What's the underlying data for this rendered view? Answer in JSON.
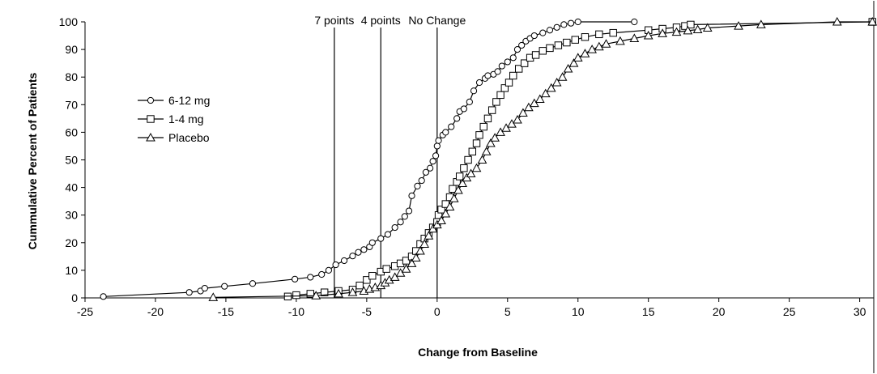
{
  "chart_data": {
    "type": "line",
    "title": "",
    "xlabel": "Change from Baseline",
    "ylabel": "Cummulative Percent of Patients",
    "xlim": [
      -25,
      31
    ],
    "ylim": [
      0,
      100
    ],
    "x_ticks": [
      -25,
      -20,
      -15,
      -10,
      -5,
      0,
      5,
      10,
      15,
      20,
      25,
      30
    ],
    "y_ticks": [
      0,
      10,
      20,
      30,
      40,
      50,
      60,
      70,
      80,
      90,
      100
    ],
    "grid": false,
    "legend_position": "left",
    "reference_lines": [
      {
        "x": -7.3,
        "label": "7 points"
      },
      {
        "x": -4.0,
        "label": "4 points"
      },
      {
        "x": 0,
        "label": "No Change"
      }
    ],
    "series": [
      {
        "name": "6-12 mg",
        "marker": "circle",
        "color": "#000000",
        "points": [
          [
            -23.7,
            0.5
          ],
          [
            -17.6,
            2.0
          ],
          [
            -16.8,
            2.5
          ],
          [
            -16.5,
            3.5
          ],
          [
            -15.1,
            4.2
          ],
          [
            -13.1,
            5.2
          ],
          [
            -10.1,
            6.8
          ],
          [
            -9.0,
            7.5
          ],
          [
            -8.2,
            8.5
          ],
          [
            -7.7,
            10
          ],
          [
            -7.2,
            12
          ],
          [
            -6.6,
            13.5
          ],
          [
            -6.0,
            15.2
          ],
          [
            -5.6,
            16.5
          ],
          [
            -5.2,
            17.5
          ],
          [
            -4.8,
            18.5
          ],
          [
            -4.6,
            20
          ],
          [
            -4.0,
            21.5
          ],
          [
            -3.5,
            23
          ],
          [
            -3.0,
            25.5
          ],
          [
            -2.6,
            27.5
          ],
          [
            -2.3,
            29.5
          ],
          [
            -2.0,
            31.5
          ],
          [
            -1.8,
            37
          ],
          [
            -1.4,
            40.5
          ],
          [
            -1.1,
            42.5
          ],
          [
            -0.8,
            45.5
          ],
          [
            -0.5,
            47
          ],
          [
            -0.3,
            49.5
          ],
          [
            -0.1,
            51.5
          ],
          [
            0.0,
            55
          ],
          [
            0.1,
            57
          ],
          [
            0.4,
            59
          ],
          [
            0.6,
            60
          ],
          [
            1.0,
            62
          ],
          [
            1.4,
            65
          ],
          [
            1.6,
            67.5
          ],
          [
            1.9,
            68.5
          ],
          [
            2.3,
            71
          ],
          [
            2.6,
            75
          ],
          [
            3.0,
            78
          ],
          [
            3.4,
            79.5
          ],
          [
            3.6,
            80.5
          ],
          [
            4.0,
            81
          ],
          [
            4.3,
            82
          ],
          [
            4.6,
            84
          ],
          [
            5.0,
            85.5
          ],
          [
            5.4,
            87
          ],
          [
            5.7,
            90
          ],
          [
            6.0,
            91.5
          ],
          [
            6.3,
            93
          ],
          [
            6.6,
            94
          ],
          [
            6.9,
            95
          ],
          [
            7.5,
            96
          ],
          [
            8.0,
            97
          ],
          [
            8.5,
            98
          ],
          [
            9.0,
            99
          ],
          [
            9.5,
            99.5
          ],
          [
            10.0,
            100
          ],
          [
            14.0,
            100
          ]
        ]
      },
      {
        "name": "1-4 mg",
        "marker": "square",
        "color": "#000000",
        "points": [
          [
            -10.6,
            0.5
          ],
          [
            -10.0,
            1.0
          ],
          [
            -9.0,
            1.5
          ],
          [
            -8.0,
            2.0
          ],
          [
            -7.0,
            2.5
          ],
          [
            -6.0,
            3.0
          ],
          [
            -5.5,
            4.5
          ],
          [
            -5.0,
            6.5
          ],
          [
            -4.6,
            8.0
          ],
          [
            -4.0,
            9.5
          ],
          [
            -3.6,
            10.5
          ],
          [
            -3.0,
            11.5
          ],
          [
            -2.6,
            12.5
          ],
          [
            -2.2,
            13.5
          ],
          [
            -1.8,
            15.0
          ],
          [
            -1.5,
            17.0
          ],
          [
            -1.2,
            19.5
          ],
          [
            -0.9,
            21.5
          ],
          [
            -0.6,
            23.5
          ],
          [
            -0.3,
            25.5
          ],
          [
            0.0,
            27.5
          ],
          [
            0.1,
            30.0
          ],
          [
            0.3,
            32.0
          ],
          [
            0.6,
            34.0
          ],
          [
            0.9,
            36.5
          ],
          [
            1.1,
            39.5
          ],
          [
            1.4,
            42.0
          ],
          [
            1.6,
            44.0
          ],
          [
            1.9,
            47.0
          ],
          [
            2.2,
            50.0
          ],
          [
            2.5,
            53.0
          ],
          [
            2.8,
            56.0
          ],
          [
            3.0,
            59.0
          ],
          [
            3.3,
            62.0
          ],
          [
            3.6,
            65.0
          ],
          [
            3.9,
            68.0
          ],
          [
            4.2,
            71.0
          ],
          [
            4.5,
            73.5
          ],
          [
            4.8,
            76.0
          ],
          [
            5.1,
            78.0
          ],
          [
            5.4,
            80.5
          ],
          [
            5.8,
            83.0
          ],
          [
            6.2,
            85.0
          ],
          [
            6.6,
            87.0
          ],
          [
            7.0,
            88.0
          ],
          [
            7.5,
            89.5
          ],
          [
            8.0,
            90.5
          ],
          [
            8.6,
            91.5
          ],
          [
            9.2,
            92.5
          ],
          [
            9.8,
            93.5
          ],
          [
            10.5,
            94.5
          ],
          [
            11.5,
            95.5
          ],
          [
            12.5,
            96.0
          ],
          [
            15.0,
            97.0
          ],
          [
            16.0,
            97.5
          ],
          [
            17.0,
            98.0
          ],
          [
            17.6,
            98.5
          ],
          [
            18.0,
            99.0
          ],
          [
            30.9,
            100
          ]
        ]
      },
      {
        "name": "Placebo",
        "marker": "triangle",
        "color": "#000000",
        "points": [
          [
            -15.9,
            0.2
          ],
          [
            -8.6,
            0.8
          ],
          [
            -7.0,
            1.5
          ],
          [
            -6.0,
            2.0
          ],
          [
            -5.2,
            2.5
          ],
          [
            -4.8,
            3.2
          ],
          [
            -4.4,
            3.8
          ],
          [
            -4.0,
            4.5
          ],
          [
            -3.7,
            5.5
          ],
          [
            -3.4,
            6.5
          ],
          [
            -3.0,
            7.5
          ],
          [
            -2.6,
            9.0
          ],
          [
            -2.2,
            10.5
          ],
          [
            -1.8,
            12.5
          ],
          [
            -1.5,
            14.5
          ],
          [
            -1.2,
            17.0
          ],
          [
            -0.9,
            19.5
          ],
          [
            -0.6,
            22.5
          ],
          [
            -0.3,
            25.0
          ],
          [
            0.0,
            26.5
          ],
          [
            0.3,
            28.0
          ],
          [
            0.6,
            30.5
          ],
          [
            0.9,
            33.0
          ],
          [
            1.2,
            36.0
          ],
          [
            1.5,
            39.0
          ],
          [
            1.8,
            41.5
          ],
          [
            2.1,
            43.5
          ],
          [
            2.4,
            45.0
          ],
          [
            2.8,
            47.0
          ],
          [
            3.2,
            50.0
          ],
          [
            3.5,
            53.0
          ],
          [
            3.8,
            56.0
          ],
          [
            4.1,
            58.0
          ],
          [
            4.5,
            60.0
          ],
          [
            4.9,
            61.5
          ],
          [
            5.3,
            63.0
          ],
          [
            5.7,
            64.5
          ],
          [
            6.1,
            67.0
          ],
          [
            6.5,
            69.0
          ],
          [
            6.9,
            70.5
          ],
          [
            7.3,
            72.0
          ],
          [
            7.7,
            74.0
          ],
          [
            8.1,
            76.0
          ],
          [
            8.5,
            78.0
          ],
          [
            8.9,
            80.0
          ],
          [
            9.3,
            83.0
          ],
          [
            9.7,
            85.0
          ],
          [
            10.0,
            87.0
          ],
          [
            10.5,
            88.5
          ],
          [
            11.0,
            90.0
          ],
          [
            11.5,
            91.0
          ],
          [
            12.0,
            92.0
          ],
          [
            13.0,
            93.0
          ],
          [
            14.0,
            94.0
          ],
          [
            15.0,
            95.0
          ],
          [
            16.0,
            95.8
          ],
          [
            17.0,
            96.3
          ],
          [
            17.8,
            96.8
          ],
          [
            18.5,
            97.2
          ],
          [
            19.2,
            97.8
          ],
          [
            21.4,
            98.5
          ],
          [
            23.0,
            99.0
          ],
          [
            28.4,
            100
          ],
          [
            30.9,
            100
          ]
        ]
      }
    ]
  }
}
